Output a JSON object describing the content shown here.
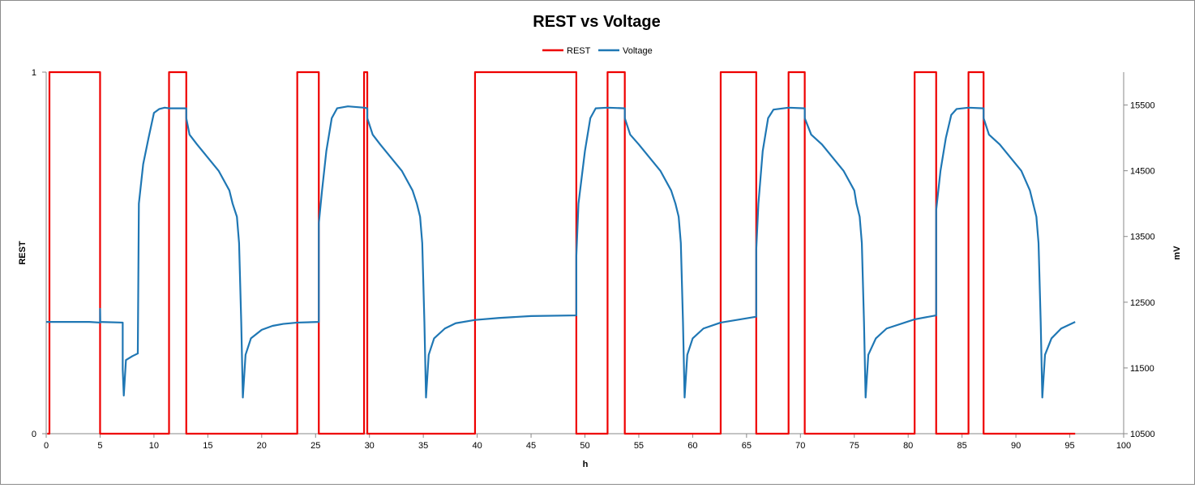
{
  "chart_data": {
    "type": "line",
    "title": "REST vs Voltage",
    "xlabel": "h",
    "ylabel_left": "REST",
    "ylabel_right": "mV",
    "xlim": [
      0,
      100
    ],
    "ylim_left": [
      0,
      1
    ],
    "ylim_right": [
      10500,
      16000
    ],
    "x_ticks": [
      "0",
      "5",
      "10",
      "15",
      "20",
      "25",
      "30",
      "35",
      "40",
      "45",
      "50",
      "55",
      "60",
      "65",
      "70",
      "75",
      "80",
      "85",
      "90",
      "95",
      "100"
    ],
    "y_left_ticks": [
      "0",
      "1"
    ],
    "y_right_ticks": [
      "10500",
      "11500",
      "12500",
      "13500",
      "14500",
      "15500"
    ],
    "legend_position": "top-center",
    "grid": false,
    "colors": {
      "rest": "#ee0000",
      "voltage": "#1f77b4"
    },
    "series": [
      {
        "name": "REST",
        "axis": "left",
        "color": "#ee0000",
        "points": [
          [
            0.1,
            0
          ],
          [
            0.3,
            0
          ],
          [
            0.3,
            1
          ],
          [
            5,
            1
          ],
          [
            5,
            0
          ],
          [
            11.4,
            0
          ],
          [
            11.4,
            1
          ],
          [
            13,
            1
          ],
          [
            13,
            0
          ],
          [
            23.3,
            0
          ],
          [
            23.3,
            1
          ],
          [
            25.3,
            1
          ],
          [
            25.3,
            0
          ],
          [
            29.5,
            0
          ],
          [
            29.5,
            1
          ],
          [
            29.8,
            1
          ],
          [
            29.8,
            0
          ],
          [
            39.8,
            0
          ],
          [
            39.8,
            1
          ],
          [
            49.2,
            1
          ],
          [
            49.2,
            0
          ],
          [
            52.1,
            0
          ],
          [
            52.1,
            1
          ],
          [
            53.7,
            1
          ],
          [
            53.7,
            0
          ],
          [
            62.6,
            0
          ],
          [
            62.6,
            1
          ],
          [
            65.9,
            1
          ],
          [
            65.9,
            0
          ],
          [
            68.9,
            0
          ],
          [
            68.9,
            1
          ],
          [
            70.4,
            1
          ],
          [
            70.4,
            0
          ],
          [
            80.6,
            0
          ],
          [
            80.6,
            1
          ],
          [
            82.6,
            1
          ],
          [
            82.6,
            0
          ],
          [
            85.6,
            0
          ],
          [
            85.6,
            1
          ],
          [
            87,
            1
          ],
          [
            87,
            0
          ],
          [
            95.5,
            0
          ]
        ]
      },
      {
        "name": "Voltage",
        "axis": "right",
        "color": "#1f77b4",
        "points": [
          [
            0,
            12200
          ],
          [
            2,
            12200
          ],
          [
            4,
            12200
          ],
          [
            5,
            12190
          ],
          [
            5,
            12400
          ],
          [
            5.02,
            12200
          ],
          [
            7.1,
            12190
          ],
          [
            7.1,
            11480
          ],
          [
            7.2,
            11080
          ],
          [
            7.4,
            11620
          ],
          [
            8,
            11680
          ],
          [
            8.5,
            11720
          ],
          [
            8.6,
            14000
          ],
          [
            9,
            14600
          ],
          [
            9.5,
            15000
          ],
          [
            10,
            15380
          ],
          [
            10.5,
            15440
          ],
          [
            11,
            15460
          ],
          [
            11.4,
            15450
          ],
          [
            13,
            15450
          ],
          [
            13,
            15300
          ],
          [
            13.3,
            15050
          ],
          [
            14,
            14900
          ],
          [
            15,
            14700
          ],
          [
            16,
            14500
          ],
          [
            17,
            14200
          ],
          [
            17.3,
            14000
          ],
          [
            17.7,
            13800
          ],
          [
            17.9,
            13400
          ],
          [
            18.1,
            12200
          ],
          [
            18.25,
            11050
          ],
          [
            18.5,
            11700
          ],
          [
            19,
            11950
          ],
          [
            20,
            12080
          ],
          [
            21,
            12140
          ],
          [
            22,
            12170
          ],
          [
            23.3,
            12190
          ],
          [
            25.3,
            12200
          ],
          [
            25.3,
            13700
          ],
          [
            25.6,
            14200
          ],
          [
            26,
            14800
          ],
          [
            26.5,
            15300
          ],
          [
            27,
            15450
          ],
          [
            28,
            15480
          ],
          [
            29.5,
            15460
          ],
          [
            29.8,
            15450
          ],
          [
            29.8,
            15300
          ],
          [
            30.3,
            15050
          ],
          [
            31,
            14900
          ],
          [
            32,
            14700
          ],
          [
            33,
            14500
          ],
          [
            34,
            14200
          ],
          [
            34.4,
            14000
          ],
          [
            34.7,
            13800
          ],
          [
            34.9,
            13400
          ],
          [
            35.1,
            12200
          ],
          [
            35.25,
            11050
          ],
          [
            35.5,
            11700
          ],
          [
            36,
            11950
          ],
          [
            37,
            12100
          ],
          [
            38,
            12180
          ],
          [
            39.8,
            12230
          ],
          [
            42,
            12260
          ],
          [
            45,
            12290
          ],
          [
            49.2,
            12300
          ],
          [
            49.2,
            13200
          ],
          [
            49.4,
            14000
          ],
          [
            50,
            14800
          ],
          [
            50.5,
            15300
          ],
          [
            51,
            15450
          ],
          [
            52.1,
            15460
          ],
          [
            53.7,
            15450
          ],
          [
            53.7,
            15300
          ],
          [
            54.2,
            15050
          ],
          [
            55,
            14900
          ],
          [
            56,
            14700
          ],
          [
            57,
            14500
          ],
          [
            58,
            14200
          ],
          [
            58.4,
            14000
          ],
          [
            58.7,
            13800
          ],
          [
            58.9,
            13400
          ],
          [
            59.1,
            12200
          ],
          [
            59.25,
            11050
          ],
          [
            59.5,
            11700
          ],
          [
            60,
            11950
          ],
          [
            61,
            12100
          ],
          [
            62.6,
            12190
          ],
          [
            65.9,
            12280
          ],
          [
            65.9,
            13300
          ],
          [
            66.1,
            14000
          ],
          [
            66.5,
            14800
          ],
          [
            67,
            15300
          ],
          [
            67.5,
            15430
          ],
          [
            68.9,
            15460
          ],
          [
            70.4,
            15450
          ],
          [
            70.4,
            15300
          ],
          [
            71,
            15050
          ],
          [
            72,
            14900
          ],
          [
            73,
            14700
          ],
          [
            74,
            14500
          ],
          [
            75,
            14200
          ],
          [
            75.2,
            14000
          ],
          [
            75.5,
            13800
          ],
          [
            75.7,
            13400
          ],
          [
            75.9,
            12200
          ],
          [
            76.05,
            11050
          ],
          [
            76.3,
            11700
          ],
          [
            77,
            11950
          ],
          [
            78,
            12100
          ],
          [
            80.6,
            12240
          ],
          [
            82.6,
            12300
          ],
          [
            82.6,
            13900
          ],
          [
            83,
            14500
          ],
          [
            83.5,
            15000
          ],
          [
            84,
            15350
          ],
          [
            84.5,
            15440
          ],
          [
            85.6,
            15460
          ],
          [
            87,
            15450
          ],
          [
            87,
            15300
          ],
          [
            87.5,
            15050
          ],
          [
            88.5,
            14900
          ],
          [
            89.5,
            14700
          ],
          [
            90.5,
            14500
          ],
          [
            91.3,
            14200
          ],
          [
            91.6,
            14000
          ],
          [
            91.9,
            13800
          ],
          [
            92.1,
            13400
          ],
          [
            92.3,
            12200
          ],
          [
            92.45,
            11050
          ],
          [
            92.7,
            11700
          ],
          [
            93.3,
            11950
          ],
          [
            94.2,
            12100
          ],
          [
            95.5,
            12200
          ]
        ]
      }
    ]
  }
}
